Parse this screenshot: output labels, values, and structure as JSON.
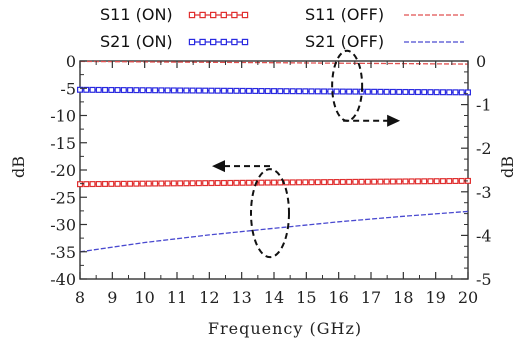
{
  "chart_data": {
    "type": "line",
    "xlabel": "Frequency (GHz)",
    "ylabel_left": "dB",
    "ylabel_right": "dB",
    "xlim": [
      8,
      20
    ],
    "ylim_left": [
      -40,
      0
    ],
    "ylim_right": [
      -5,
      0
    ],
    "x_ticks": [
      "8",
      "9",
      "10",
      "11",
      "12",
      "13",
      "14",
      "15",
      "16",
      "17",
      "18",
      "19",
      "20"
    ],
    "y_left_ticks": [
      "0",
      "-5",
      "-10",
      "-15",
      "-20",
      "-25",
      "-30",
      "-35",
      "-40"
    ],
    "y_right_ticks": [
      "0",
      "-1",
      "-2",
      "-3",
      "-4",
      "-5"
    ],
    "grid": false,
    "legend_position": "top",
    "series": [
      {
        "name": "S11 (ON)",
        "axis": "left",
        "style": "square-markers",
        "color": "#e03030",
        "x": [
          8,
          10,
          12,
          14,
          16,
          18,
          20
        ],
        "y": [
          -22.6,
          -22.5,
          -22.4,
          -22.3,
          -22.2,
          -22.1,
          -22.0
        ]
      },
      {
        "name": "S21 (ON)",
        "axis": "right",
        "style": "square-markers",
        "color": "#2a2ae0",
        "x": [
          8,
          10,
          12,
          14,
          16,
          18,
          20
        ],
        "y": [
          -0.66,
          -0.67,
          -0.68,
          -0.69,
          -0.7,
          -0.71,
          -0.72
        ]
      },
      {
        "name": "S11 (OFF)",
        "axis": "right",
        "style": "dashed",
        "color": "#e05050",
        "x": [
          8,
          10,
          12,
          14,
          16,
          18,
          20
        ],
        "y": [
          -0.01,
          -0.02,
          -0.03,
          -0.04,
          -0.05,
          -0.06,
          -0.07
        ]
      },
      {
        "name": "S21 (OFF)",
        "axis": "left",
        "style": "dashed",
        "color": "#4a4ad0",
        "x": [
          8,
          10,
          12,
          14,
          16,
          18,
          20
        ],
        "y": [
          -35.0,
          -33.3,
          -31.9,
          -30.7,
          -29.5,
          -28.5,
          -27.6
        ]
      }
    ],
    "annotations": [
      {
        "type": "dashed-ellipse",
        "target": "S21 curves",
        "x": 16.2,
        "y_left": -4,
        "arrow": "right"
      },
      {
        "type": "dashed-ellipse",
        "target": "S11 (ON) / S21 (OFF)",
        "x": 14,
        "y_left": -27,
        "arrow": "left"
      }
    ]
  },
  "colors": {
    "axis": "#333333",
    "s11_on": "#e03030",
    "s21_on": "#2a2ae0",
    "s11_off": "#e05050",
    "s21_off": "#4a4ad0"
  }
}
